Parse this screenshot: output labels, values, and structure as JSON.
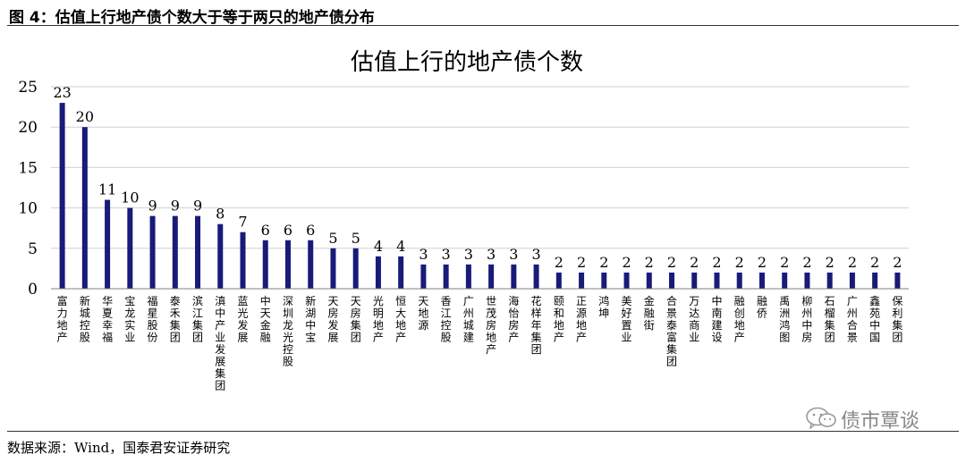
{
  "figure_title": "图 4：估值上行地产债个数大于等于两只的地产债分布",
  "source": "数据来源：Wind，国泰君安证券研究",
  "watermark": "债市覃谈",
  "icons": {
    "watermark": "wechat-icon"
  },
  "colors": {
    "bar": "#1a1a7a",
    "grid": "#d0d0d0",
    "axis": "#808080"
  },
  "chart_data": {
    "type": "bar",
    "title": "估值上行的地产债个数",
    "xlabel": "",
    "ylabel": "",
    "ylim": [
      0,
      25
    ],
    "yticks": [
      0,
      5,
      10,
      15,
      20,
      25
    ],
    "grid": true,
    "legend": "none",
    "categories": [
      "富力地产",
      "新城控股",
      "华夏幸福",
      "宝龙实业",
      "福星股份",
      "泰禾集团",
      "滨江集团",
      "滇中产业发展集团",
      "蓝光发展",
      "中天金融",
      "深圳龙光控股",
      "新湖中宝",
      "天房发展",
      "天房集团",
      "光明地产",
      "恒大地产",
      "天地源",
      "香江控股",
      "广州城建",
      "世茂房地产",
      "海怡房产",
      "花样年集团",
      "颐和地产",
      "正源地产",
      "鸿坤",
      "美好置业",
      "金融街",
      "合景泰富集团",
      "万达商业",
      "中南建设",
      "融创地产",
      "融侨",
      "禹洲鸿图",
      "柳州中房",
      "石榴集团",
      "广州合景",
      "鑫苑中国",
      "保利集团"
    ],
    "values": [
      23,
      20,
      11,
      10,
      9,
      9,
      9,
      8,
      7,
      6,
      6,
      6,
      5,
      5,
      4,
      4,
      3,
      3,
      3,
      3,
      3,
      3,
      2,
      2,
      2,
      2,
      2,
      2,
      2,
      2,
      2,
      2,
      2,
      2,
      2,
      2,
      2,
      2
    ]
  }
}
